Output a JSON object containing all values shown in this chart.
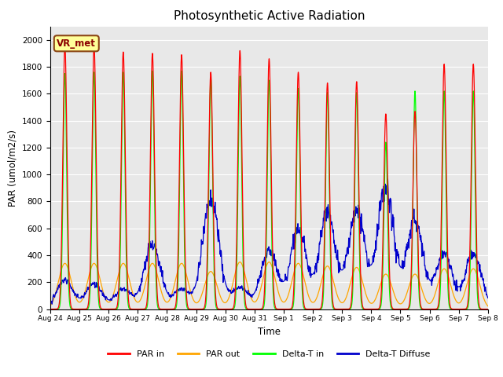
{
  "title": "Photosynthetic Active Radiation",
  "ylabel": "PAR (umol/m2/s)",
  "xlabel": "Time",
  "annotation": "VR_met",
  "ylim": [
    0,
    2100
  ],
  "yticks": [
    0,
    200,
    400,
    600,
    800,
    1000,
    1200,
    1400,
    1600,
    1800,
    2000
  ],
  "xtick_labels": [
    "Aug 24",
    "Aug 25",
    "Aug 26",
    "Aug 27",
    "Aug 28",
    "Aug 29",
    "Aug 30",
    "Aug 31",
    "Sep 1",
    "Sep 2",
    "Sep 3",
    "Sep 4",
    "Sep 5",
    "Sep 6",
    "Sep 7",
    "Sep 8"
  ],
  "colors": {
    "PAR_in": "#FF0000",
    "PAR_out": "#FFA500",
    "Delta_T_in": "#00FF00",
    "Delta_T_Diffuse": "#0000CC"
  },
  "legend_labels": [
    "PAR in",
    "PAR out",
    "Delta-T in",
    "Delta-T Diffuse"
  ],
  "background_color": "#E8E8E8",
  "figure_background": "#FFFFFF",
  "daily_peaks_PAR_in": [
    1960,
    1960,
    1910,
    1900,
    1890,
    1760,
    1920,
    1860,
    1760,
    1680,
    1690,
    1450,
    1470,
    1820,
    1820
  ],
  "daily_peaks_PAR_out": [
    340,
    340,
    340,
    340,
    340,
    280,
    350,
    350,
    340,
    320,
    310,
    260,
    260,
    300,
    300
  ],
  "daily_peaks_Delta_T_in": [
    1750,
    1760,
    1760,
    1770,
    1770,
    1720,
    1730,
    1700,
    1640,
    1610,
    1610,
    1240,
    1620,
    1620,
    1620
  ],
  "daily_peaks_Delta_T_diffuse": [
    220,
    190,
    150,
    480,
    150,
    820,
    160,
    440,
    580,
    700,
    730,
    890,
    660,
    410,
    410
  ]
}
